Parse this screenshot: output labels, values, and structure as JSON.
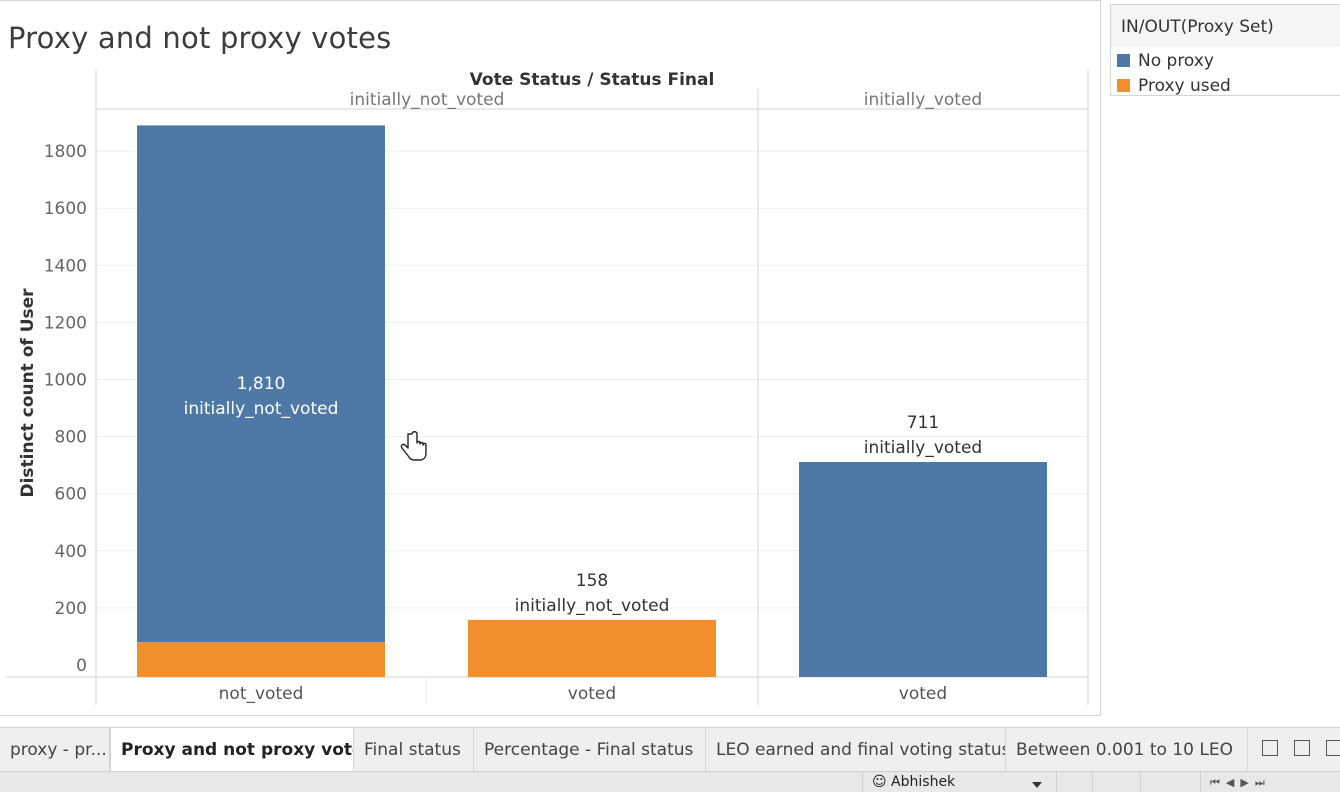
{
  "sheet": {
    "title": "Proxy and not proxy votes"
  },
  "legend": {
    "title": "IN/OUT(Proxy Set)",
    "items": [
      {
        "label": "No proxy",
        "color": "#4e79a7"
      },
      {
        "label": "Proxy used",
        "color": "#f28e2b"
      }
    ]
  },
  "chart_data": {
    "type": "bar",
    "stacked": true,
    "column_header_title": "Vote Status  /  Status Final",
    "ylabel": "Distinct count of User",
    "ylim": [
      0,
      1900
    ],
    "yticks": [
      0,
      200,
      400,
      600,
      800,
      1000,
      1200,
      1400,
      1600,
      1800
    ],
    "grid": true,
    "panes": [
      {
        "header": "initially_not_voted",
        "categories": [
          "not_voted",
          "voted"
        ]
      },
      {
        "header": "initially_voted",
        "categories": [
          "voted"
        ]
      }
    ],
    "bars": [
      {
        "pane": "initially_not_voted",
        "category": "not_voted",
        "segments": [
          {
            "series": "Proxy used",
            "value": 80
          },
          {
            "series": "No proxy",
            "value": 1810
          }
        ],
        "label_value": "1,810",
        "label_text": "initially_not_voted",
        "label_inside": true
      },
      {
        "pane": "initially_not_voted",
        "category": "voted",
        "segments": [
          {
            "series": "Proxy used",
            "value": 158
          }
        ],
        "label_value": "158",
        "label_text": "initially_not_voted",
        "label_inside": false
      },
      {
        "pane": "initially_voted",
        "category": "voted",
        "segments": [
          {
            "series": "No proxy",
            "value": 711
          }
        ],
        "label_value": "711",
        "label_text": "initially_voted",
        "label_inside": false
      }
    ]
  },
  "tabs": [
    {
      "label": "proxy - pr...",
      "active": false
    },
    {
      "label": "Proxy and not proxy votes",
      "active": true
    },
    {
      "label": "Final status",
      "active": false
    },
    {
      "label": "Percentage - Final status",
      "active": false
    },
    {
      "label": "LEO earned and final voting status",
      "active": false
    },
    {
      "label": "Between 0.001 to 10 LEO",
      "active": false
    }
  ],
  "statusbar": {
    "user": "Abhishek"
  },
  "icons": {
    "new_worksheet": "new-worksheet-icon",
    "new_dashboard": "new-dashboard-icon",
    "new_story": "new-story-icon",
    "cursor": "hand-pointer-icon"
  }
}
